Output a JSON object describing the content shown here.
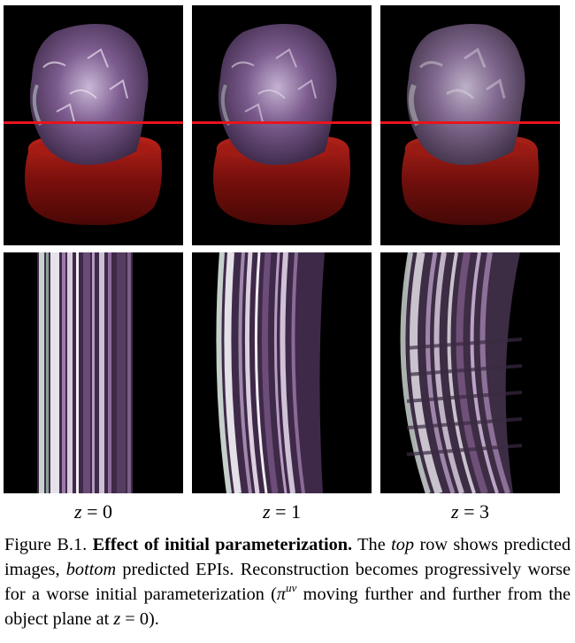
{
  "columns": [
    {
      "z_label_var": "z",
      "z_label_eq": " = 0"
    },
    {
      "z_label_var": "z",
      "z_label_eq": " = 1"
    },
    {
      "z_label_var": "z",
      "z_label_eq": " = 3"
    }
  ],
  "caption": {
    "figure_id": "Figure B.1.",
    "title": "Effect of initial parameterization.",
    "part1": " The ",
    "top_word": "top",
    "part2": " row shows predicted images, ",
    "bottom_word": "bottom",
    "part3": " predicted EPIs. Reconstruction becomes progressively worse for a worse initial parameterization (",
    "pi_symbol": "π",
    "pi_superscript": "uv",
    "part4": " moving further and further from the object plane at ",
    "z_var": "z",
    "part5": " = 0)."
  },
  "colors": {
    "scan_line": "#e8141c",
    "background": "#000000",
    "stand": "#8e1410",
    "crystal": "#7a5a8a"
  }
}
